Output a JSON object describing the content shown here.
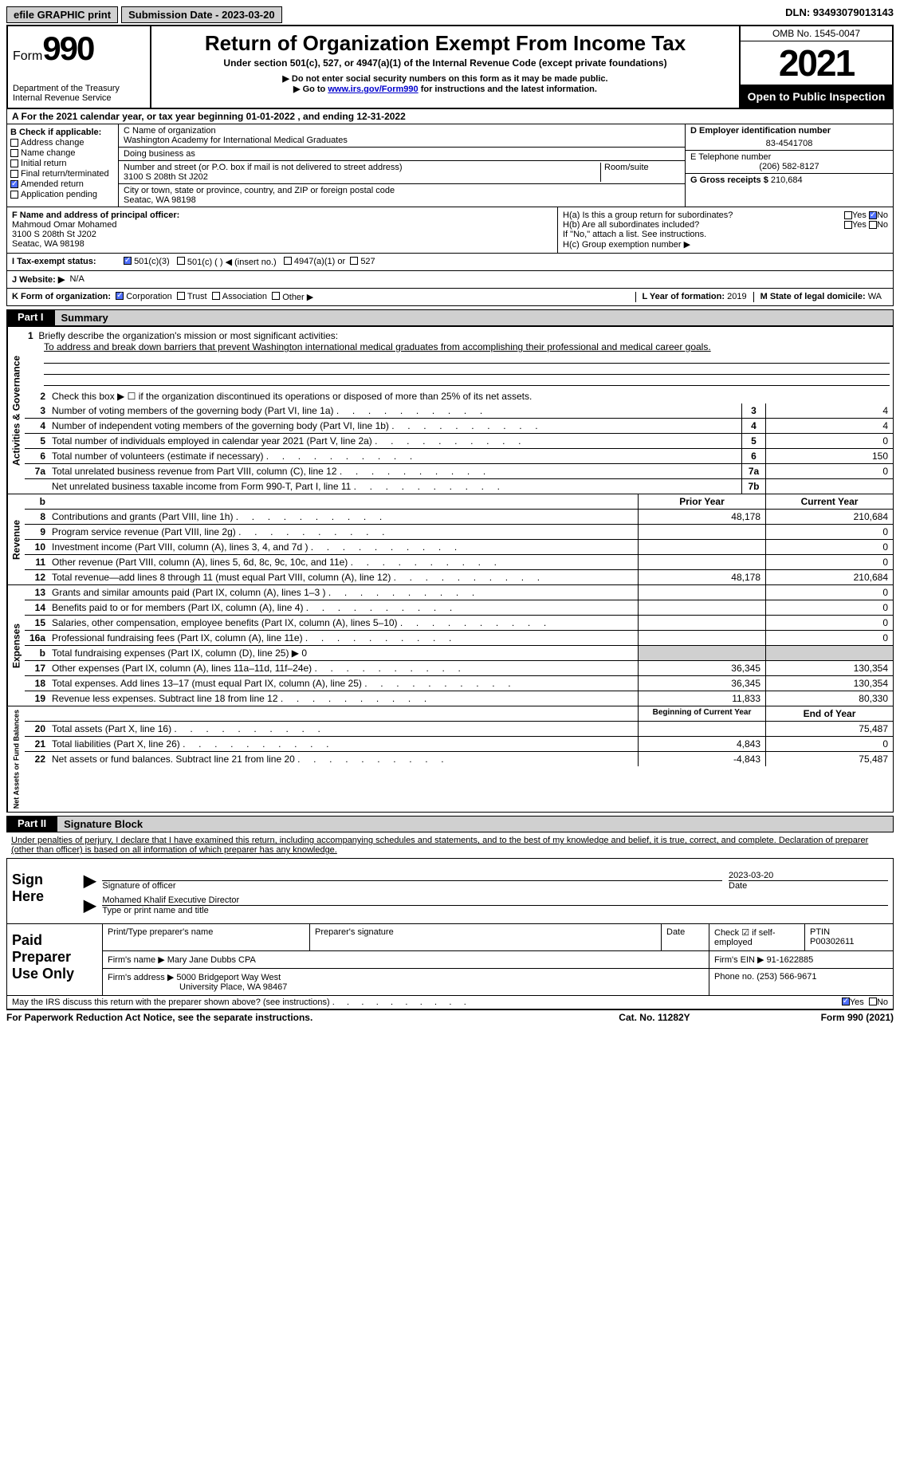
{
  "topbar": {
    "efile": "efile GRAPHIC print",
    "submission": "Submission Date - 2023-03-20",
    "dln": "DLN: 93493079013143"
  },
  "header": {
    "form_label": "Form",
    "form_number": "990",
    "dept": "Department of the Treasury",
    "irs": "Internal Revenue Service",
    "title": "Return of Organization Exempt From Income Tax",
    "subtitle": "Under section 501(c), 527, or 4947(a)(1) of the Internal Revenue Code (except private foundations)",
    "note1": "▶ Do not enter social security numbers on this form as it may be made public.",
    "note2_pre": "▶ Go to ",
    "note2_link": "www.irs.gov/Form990",
    "note2_post": " for instructions and the latest information.",
    "omb": "OMB No. 1545-0047",
    "year": "2021",
    "open": "Open to Public Inspection"
  },
  "row_a": "A For the 2021 calendar year, or tax year beginning 01-01-2022    , and ending 12-31-2022",
  "section_b": {
    "label": "B Check if applicable:",
    "items": [
      "Address change",
      "Name change",
      "Initial return",
      "Final return/terminated",
      "Amended return",
      "Application pending"
    ],
    "checked_index": 4
  },
  "section_c": {
    "name_label": "C Name of organization",
    "name": "Washington Academy for International Medical Graduates",
    "dba_label": "Doing business as",
    "dba": "",
    "addr_label": "Number and street (or P.O. box if mail is not delivered to street address)",
    "room_label": "Room/suite",
    "addr": "3100 S 208th St J202",
    "city_label": "City or town, state or province, country, and ZIP or foreign postal code",
    "city": "Seatac, WA   98198"
  },
  "section_d": {
    "ein_label": "D Employer identification number",
    "ein": "83-4541708",
    "phone_label": "E Telephone number",
    "phone": "(206) 582-8127",
    "gross_label": "G Gross receipts $",
    "gross": "210,684"
  },
  "section_f": {
    "label": "F  Name and address of principal officer:",
    "name": "Mahmoud Omar Mohamed",
    "addr1": "3100 S 208th St J202",
    "addr2": "Seatac, WA   98198"
  },
  "section_h": {
    "ha": "H(a)  Is this a group return for subordinates?",
    "hb": "H(b)  Are all subordinates included?",
    "hb_note": "If \"No,\" attach a list. See instructions.",
    "hc": "H(c)  Group exemption number ▶",
    "yes": "Yes",
    "no": "No"
  },
  "row_i": {
    "label": "I    Tax-exempt status:",
    "opt1": "501(c)(3)",
    "opt2": "501(c) (  ) ◀ (insert no.)",
    "opt3": "4947(a)(1) or",
    "opt4": "527"
  },
  "row_j": {
    "label": "J   Website: ▶",
    "value": "N/A"
  },
  "row_k": {
    "label": "K Form of organization:",
    "opts": [
      "Corporation",
      "Trust",
      "Association",
      "Other ▶"
    ]
  },
  "row_l": {
    "label": "L Year of formation:",
    "value": "2019"
  },
  "row_m": {
    "label": "M State of legal domicile:",
    "value": "WA"
  },
  "part1": {
    "tab": "Part I",
    "title": "Summary"
  },
  "line1": {
    "label": "Briefly describe the organization's mission or most significant activities:",
    "text": "To address and break down barriers that prevent Washington international medical graduates from accomplishing their professional and medical career goals."
  },
  "line2": "Check this box ▶ ☐  if the organization discontinued its operations or disposed of more than 25% of its net assets.",
  "lines_gov": [
    {
      "n": "3",
      "d": "Number of voting members of the governing body (Part VI, line 1a)",
      "b": "3",
      "v": "4"
    },
    {
      "n": "4",
      "d": "Number of independent voting members of the governing body (Part VI, line 1b)",
      "b": "4",
      "v": "4"
    },
    {
      "n": "5",
      "d": "Total number of individuals employed in calendar year 2021 (Part V, line 2a)",
      "b": "5",
      "v": "0"
    },
    {
      "n": "6",
      "d": "Total number of volunteers (estimate if necessary)",
      "b": "6",
      "v": "150"
    },
    {
      "n": "7a",
      "d": "Total unrelated business revenue from Part VIII, column (C), line 12",
      "b": "7a",
      "v": "0"
    },
    {
      "n": "",
      "d": "Net unrelated business taxable income from Form 990-T, Part I, line 11",
      "b": "7b",
      "v": ""
    }
  ],
  "col_headers": {
    "prior": "Prior Year",
    "current": "Current Year"
  },
  "revenue": [
    {
      "n": "8",
      "d": "Contributions and grants (Part VIII, line 1h)",
      "p": "48,178",
      "c": "210,684"
    },
    {
      "n": "9",
      "d": "Program service revenue (Part VIII, line 2g)",
      "p": "",
      "c": "0"
    },
    {
      "n": "10",
      "d": "Investment income (Part VIII, column (A), lines 3, 4, and 7d )",
      "p": "",
      "c": "0"
    },
    {
      "n": "11",
      "d": "Other revenue (Part VIII, column (A), lines 5, 6d, 8c, 9c, 10c, and 11e)",
      "p": "",
      "c": "0"
    },
    {
      "n": "12",
      "d": "Total revenue—add lines 8 through 11 (must equal Part VIII, column (A), line 12)",
      "p": "48,178",
      "c": "210,684"
    }
  ],
  "expenses": [
    {
      "n": "13",
      "d": "Grants and similar amounts paid (Part IX, column (A), lines 1–3 )",
      "p": "",
      "c": "0"
    },
    {
      "n": "14",
      "d": "Benefits paid to or for members (Part IX, column (A), line 4)",
      "p": "",
      "c": "0"
    },
    {
      "n": "15",
      "d": "Salaries, other compensation, employee benefits (Part IX, column (A), lines 5–10)",
      "p": "",
      "c": "0"
    },
    {
      "n": "16a",
      "d": "Professional fundraising fees (Part IX, column (A), line 11e)",
      "p": "",
      "c": "0"
    },
    {
      "n": "b",
      "d": "Total fundraising expenses (Part IX, column (D), line 25) ▶ 0",
      "shade": true
    },
    {
      "n": "17",
      "d": "Other expenses (Part IX, column (A), lines 11a–11d, 11f–24e)",
      "p": "36,345",
      "c": "130,354"
    },
    {
      "n": "18",
      "d": "Total expenses. Add lines 13–17 (must equal Part IX, column (A), line 25)",
      "p": "36,345",
      "c": "130,354"
    },
    {
      "n": "19",
      "d": "Revenue less expenses. Subtract line 18 from line 12",
      "p": "11,833",
      "c": "80,330"
    }
  ],
  "col_headers2": {
    "beg": "Beginning of Current Year",
    "end": "End of Year"
  },
  "netassets": [
    {
      "n": "20",
      "d": "Total assets (Part X, line 16)",
      "p": "",
      "c": "75,487"
    },
    {
      "n": "21",
      "d": "Total liabilities (Part X, line 26)",
      "p": "4,843",
      "c": "0"
    },
    {
      "n": "22",
      "d": "Net assets or fund balances. Subtract line 21 from line 20",
      "p": "-4,843",
      "c": "75,487"
    }
  ],
  "part2": {
    "tab": "Part II",
    "title": "Signature Block"
  },
  "sig_decl": "Under penalties of perjury, I declare that I have examined this return, including accompanying schedules and statements, and to the best of my knowledge and belief, it is true, correct, and complete. Declaration of preparer (other than officer) is based on all information of which preparer has any knowledge.",
  "sign": {
    "label": "Sign Here",
    "sig_of_officer": "Signature of officer",
    "date": "2023-03-20",
    "date_label": "Date",
    "name_title": "Mohamed Khalif  Executive Director",
    "name_label": "Type or print name and title"
  },
  "preparer": {
    "label": "Paid Preparer Use Only",
    "print_label": "Print/Type preparer's name",
    "sig_label": "Preparer's signature",
    "date_label": "Date",
    "check_label": "Check ☑ if self-employed",
    "ptin_label": "PTIN",
    "ptin": "P00302611",
    "firm_name_label": "Firm's name    ▶",
    "firm_name": "Mary Jane Dubbs CPA",
    "firm_ein_label": "Firm's EIN ▶",
    "firm_ein": "91-1622885",
    "firm_addr_label": "Firm's address ▶",
    "firm_addr1": "5000 Bridgeport Way West",
    "firm_addr2": "University Place, WA   98467",
    "phone_label": "Phone no.",
    "phone": "(253) 566-9671"
  },
  "discuss": {
    "text": "May the IRS discuss this return with the preparer shown above? (see instructions)",
    "yes": "Yes",
    "no": "No"
  },
  "paperwork": {
    "left": "For Paperwork Reduction Act Notice, see the separate instructions.",
    "mid": "Cat. No. 11282Y",
    "right": "Form 990 (2021)"
  },
  "vert_labels": {
    "gov": "Activities & Governance",
    "rev": "Revenue",
    "exp": "Expenses",
    "net": "Net Assets or Fund Balances"
  }
}
